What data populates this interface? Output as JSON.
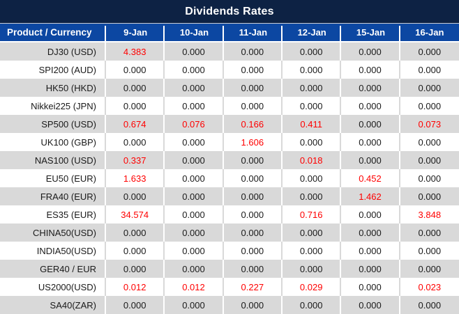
{
  "chart_data": {
    "type": "table",
    "title": "Dividends Rates",
    "corner_header": "Product / Currency",
    "date_columns": [
      "9-Jan",
      "10-Jan",
      "11-Jan",
      "12-Jan",
      "15-Jan",
      "16-Jan"
    ],
    "rows": [
      {
        "product": "DJ30 (USD)",
        "values": [
          "4.383",
          "0.000",
          "0.000",
          "0.000",
          "0.000",
          "0.000"
        ]
      },
      {
        "product": "SPI200 (AUD)",
        "values": [
          "0.000",
          "0.000",
          "0.000",
          "0.000",
          "0.000",
          "0.000"
        ]
      },
      {
        "product": "HK50 (HKD)",
        "values": [
          "0.000",
          "0.000",
          "0.000",
          "0.000",
          "0.000",
          "0.000"
        ]
      },
      {
        "product": "Nikkei225 (JPN)",
        "values": [
          "0.000",
          "0.000",
          "0.000",
          "0.000",
          "0.000",
          "0.000"
        ]
      },
      {
        "product": "SP500 (USD)",
        "values": [
          "0.674",
          "0.076",
          "0.166",
          "0.411",
          "0.000",
          "0.073"
        ]
      },
      {
        "product": "UK100 (GBP)",
        "values": [
          "0.000",
          "0.000",
          "1.606",
          "0.000",
          "0.000",
          "0.000"
        ]
      },
      {
        "product": "NAS100 (USD)",
        "values": [
          "0.337",
          "0.000",
          "0.000",
          "0.018",
          "0.000",
          "0.000"
        ]
      },
      {
        "product": "EU50 (EUR)",
        "values": [
          "1.633",
          "0.000",
          "0.000",
          "0.000",
          "0.452",
          "0.000"
        ]
      },
      {
        "product": "FRA40 (EUR)",
        "values": [
          "0.000",
          "0.000",
          "0.000",
          "0.000",
          "1.462",
          "0.000"
        ]
      },
      {
        "product": "ES35 (EUR)",
        "values": [
          "34.574",
          "0.000",
          "0.000",
          "0.716",
          "0.000",
          "3.848"
        ]
      },
      {
        "product": "CHINA50(USD)",
        "values": [
          "0.000",
          "0.000",
          "0.000",
          "0.000",
          "0.000",
          "0.000"
        ]
      },
      {
        "product": "INDIA50(USD)",
        "values": [
          "0.000",
          "0.000",
          "0.000",
          "0.000",
          "0.000",
          "0.000"
        ]
      },
      {
        "product": "GER40 / EUR",
        "values": [
          "0.000",
          "0.000",
          "0.000",
          "0.000",
          "0.000",
          "0.000"
        ]
      },
      {
        "product": "US2000(USD)",
        "values": [
          "0.012",
          "0.012",
          "0.227",
          "0.029",
          "0.000",
          "0.023"
        ]
      },
      {
        "product": "SA40(ZAR)",
        "values": [
          "0.000",
          "0.000",
          "0.000",
          "0.000",
          "0.000",
          "0.000"
        ]
      }
    ],
    "value_color_rule": "non-zero values rendered red, zero values black",
    "row_striping": "alternating gray/white starting gray"
  },
  "colors": {
    "title_bar_bg": "#0D2244",
    "header_bg": "#0C47A2",
    "header_text": "#FFFFFF",
    "row_alt_bg": "#D9D9D9",
    "row_bg": "#FFFFFF",
    "value_nonzero": "#FF0000",
    "value_zero": "#1A1A1A"
  }
}
